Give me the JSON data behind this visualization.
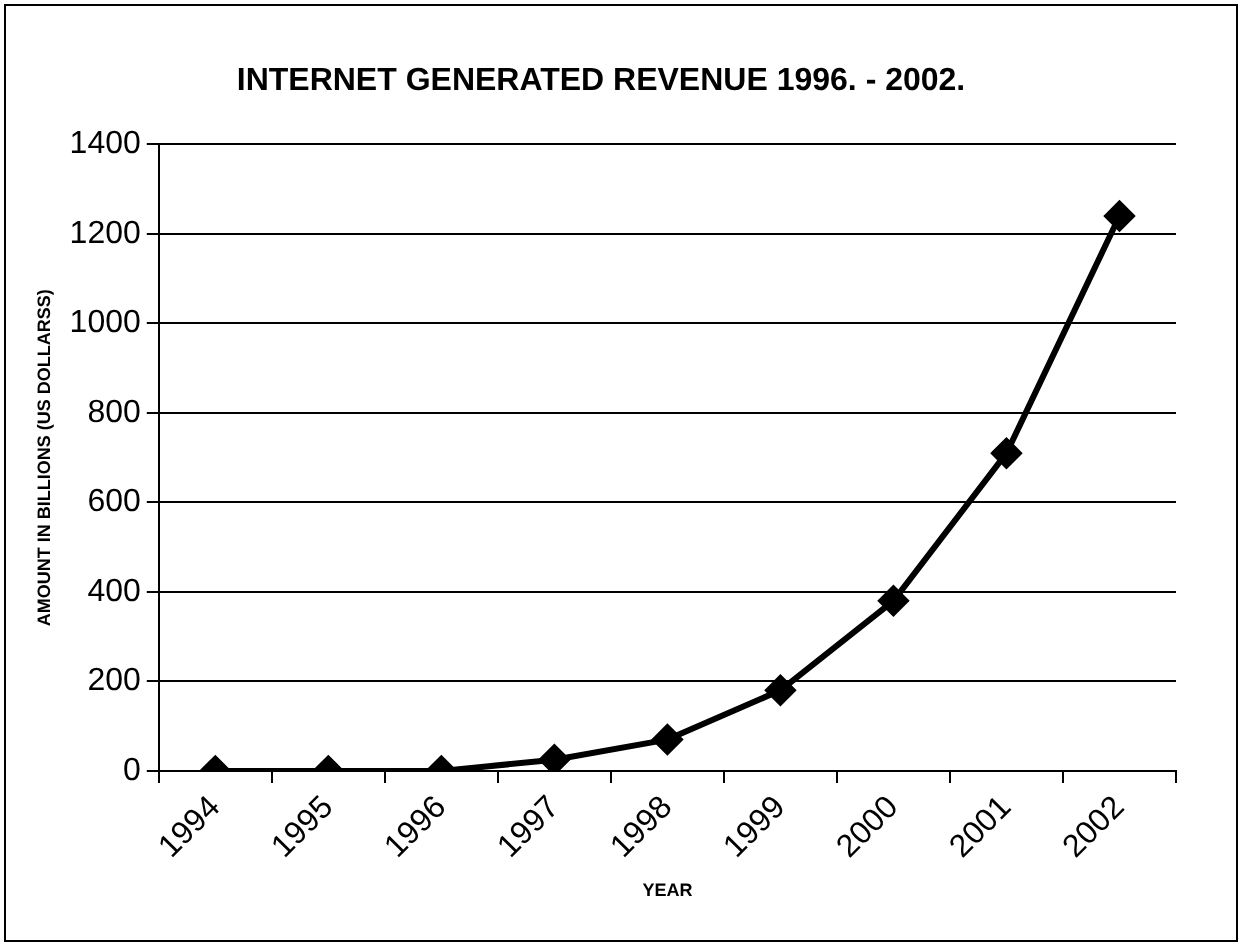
{
  "chart_data": {
    "type": "line",
    "title": "INTERNET GENERATED REVENUE 1996. - 2002.",
    "xlabel": "YEAR",
    "ylabel": "AMOUNT IN BILLIONS (US DOLLARSS)",
    "categories": [
      "1994",
      "1995",
      "1996",
      "1997",
      "1998",
      "1999",
      "2000",
      "2001",
      "2002"
    ],
    "series": [
      {
        "color": "#000000",
        "values": [
          0,
          0,
          0,
          25,
          70,
          180,
          380,
          710,
          1240
        ]
      }
    ],
    "ylim": [
      0,
      1400
    ],
    "yticks": [
      0,
      200,
      400,
      600,
      800,
      1000,
      1200,
      1400
    ],
    "grid": "y",
    "legend": false,
    "marker": "diamond",
    "line_style": "solid"
  }
}
